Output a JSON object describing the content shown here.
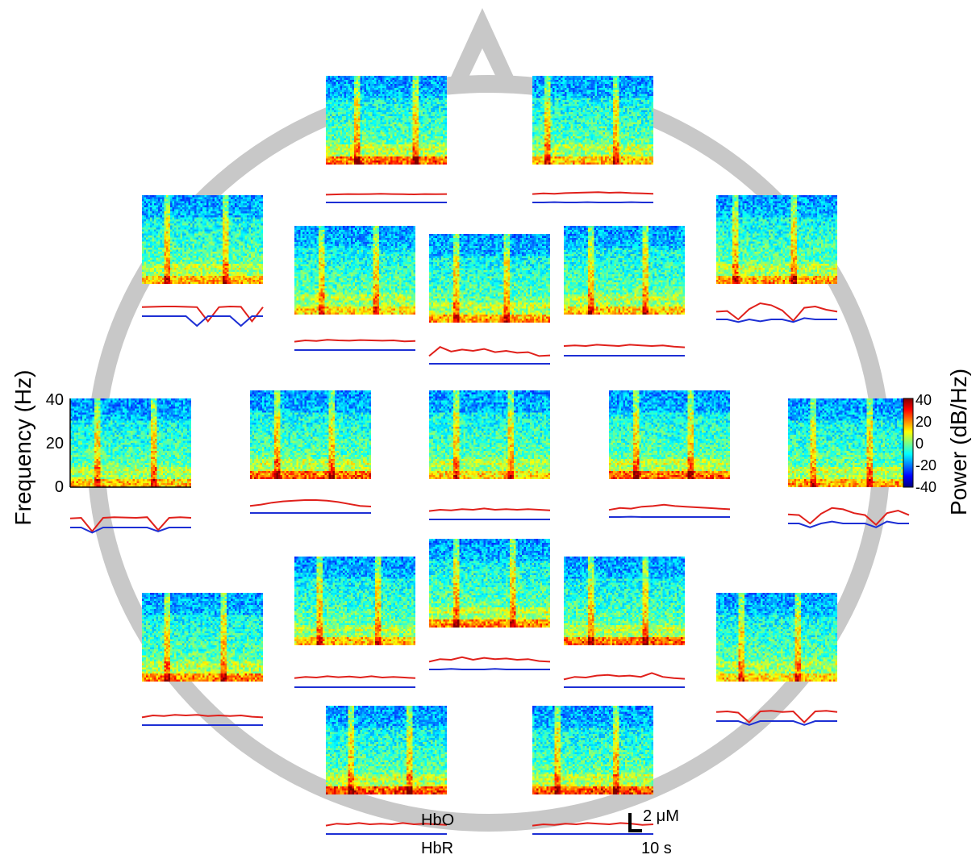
{
  "chart_data": {
    "type": "heatmap",
    "title": "",
    "ylabel": "Frequency (Hz)",
    "yticks": [
      "40",
      "20",
      "0"
    ],
    "ylim": [
      0,
      40
    ],
    "colorbar": {
      "label": "Power (dB/Hz)",
      "ticks": [
        "40",
        "20",
        "0",
        "-20",
        "-40"
      ],
      "range": [
        -40,
        40
      ],
      "colormap": "jet"
    },
    "legend": {
      "hbo": "HbO",
      "hbr": "HbR"
    },
    "scale_bar": {
      "amplitude": "2 μM",
      "time": "10 s"
    },
    "series_colors": {
      "hbo": "#e0201b",
      "hbr": "#1d2fd4"
    },
    "head_color": "#c8c8c8",
    "channels": [
      {
        "id": "ch1",
        "stim_lines": [
          0.26,
          0.74
        ],
        "low_freq_power": 0.9,
        "hbo": [
          0.2,
          0.25,
          0.3,
          0.28,
          0.3,
          0.35,
          0.3,
          0.28,
          0.25,
          0.3,
          0.28,
          0.3
        ],
        "hbr": [
          0,
          0,
          0,
          0,
          0,
          0,
          0,
          0,
          0,
          0,
          0,
          0
        ]
      },
      {
        "id": "ch2",
        "stim_lines": [
          0.12,
          0.7
        ],
        "low_freq_power": 0.6,
        "hbo": [
          0.3,
          0.4,
          0.35,
          0.45,
          0.5,
          0.55,
          0.6,
          0.5,
          0.55,
          0.45,
          0.4,
          0.35
        ],
        "hbr": [
          0,
          0,
          0.05,
          0,
          0,
          0.05,
          0,
          0,
          0,
          0.05,
          0,
          0
        ]
      },
      {
        "id": "ch3",
        "stim_lines": [
          0.2,
          0.7
        ],
        "low_freq_power": 0.6,
        "hbo": [
          0.4,
          0.45,
          0.5,
          0.5,
          0.45,
          0.4,
          -1.8,
          0.4,
          0.5,
          0.45,
          -1.8,
          0.4
        ],
        "hbr": [
          0,
          0,
          0,
          0,
          0,
          -1.5,
          0,
          0,
          0,
          -1.5,
          0,
          0
        ]
      },
      {
        "id": "ch4",
        "stim_lines": [
          0.22,
          0.68
        ],
        "low_freq_power": 0.5,
        "hbo": [
          0.3,
          0.5,
          0.4,
          0.6,
          0.5,
          0.45,
          0.55,
          0.5,
          0.45,
          0.5,
          0.35,
          0.4
        ],
        "hbr": [
          0,
          0,
          0,
          0,
          0,
          0,
          0,
          0,
          0,
          0,
          0,
          0
        ]
      },
      {
        "id": "ch5",
        "stim_lines": [
          0.22,
          0.65
        ],
        "low_freq_power": 0.7,
        "hbo": [
          0.2,
          1.6,
          0.9,
          1.2,
          1.0,
          1.3,
          0.8,
          1.0,
          0.7,
          0.8,
          0.2,
          0.3
        ],
        "hbr": [
          0,
          0,
          0,
          0,
          0,
          0,
          0,
          0,
          0,
          0,
          0,
          0
        ]
      },
      {
        "id": "ch6",
        "stim_lines": [
          0.22,
          0.68
        ],
        "low_freq_power": 0.6,
        "hbo": [
          0.5,
          0.6,
          0.5,
          0.7,
          0.6,
          0.5,
          0.7,
          0.6,
          0.5,
          0.6,
          0.4,
          0.3
        ],
        "hbr": [
          0,
          0,
          0,
          0,
          0,
          0,
          0,
          0,
          0,
          0,
          0,
          0
        ]
      },
      {
        "id": "ch7",
        "stim_lines": [
          0.15,
          0.65
        ],
        "low_freq_power": 0.7,
        "hbo": [
          0.2,
          0.3,
          -1.0,
          0.6,
          1.5,
          1.2,
          0.4,
          -1.2,
          0.8,
          1.0,
          0.5,
          0.2
        ],
        "hbr": [
          0,
          0,
          -0.4,
          0,
          -0.3,
          0,
          0,
          -0.4,
          0.2,
          0,
          0,
          0
        ]
      },
      {
        "id": "ch8",
        "stim_lines": [
          0.22,
          0.7
        ],
        "low_freq_power": 0.6,
        "hbo": [
          0.4,
          0.5,
          -1.6,
          0.5,
          0.6,
          0.55,
          0.5,
          0.6,
          -1.4,
          0.5,
          0.6,
          0.5
        ],
        "hbr": [
          0,
          0,
          -0.8,
          0,
          0,
          0,
          0,
          0,
          -0.6,
          0,
          0,
          0
        ]
      },
      {
        "id": "ch9",
        "stim_lines": [
          0.22,
          0.68
        ],
        "low_freq_power": 0.9,
        "hbo": [
          0.1,
          0.3,
          0.6,
          0.8,
          0.9,
          1.0,
          1.0,
          0.9,
          0.7,
          0.4,
          0.1,
          0.0
        ],
        "hbr": [
          0,
          0,
          0,
          0,
          0,
          0,
          0,
          0,
          0,
          0,
          0,
          0
        ]
      },
      {
        "id": "ch10",
        "stim_lines": [
          0.22,
          0.68
        ],
        "low_freq_power": 0.5,
        "hbo": [
          0.3,
          0.5,
          0.4,
          0.6,
          0.5,
          0.7,
          0.5,
          0.6,
          0.5,
          0.6,
          0.5,
          0.4
        ],
        "hbr": [
          0,
          0,
          0,
          0,
          0,
          0,
          0,
          0,
          0,
          0,
          0,
          0
        ]
      },
      {
        "id": "ch11",
        "stim_lines": [
          0.22,
          0.68
        ],
        "low_freq_power": 0.9,
        "hbo": [
          0.1,
          0.4,
          0.3,
          0.6,
          0.7,
          0.9,
          0.7,
          0.6,
          0.5,
          0.4,
          0.3,
          0.2
        ],
        "hbr": [
          0,
          0,
          0.05,
          0,
          0,
          0,
          0,
          0,
          0,
          0,
          0,
          0
        ]
      },
      {
        "id": "ch12",
        "stim_lines": [
          0.2,
          0.68
        ],
        "low_freq_power": 0.7,
        "hbo": [
          0.4,
          0.3,
          -1.0,
          0.5,
          1.4,
          1.2,
          0.6,
          0.3,
          -1.2,
          0.6,
          1.0,
          0.3
        ],
        "hbr": [
          0,
          0,
          -0.6,
          0,
          0.3,
          0,
          0,
          0,
          -0.6,
          0.3,
          0,
          0
        ]
      },
      {
        "id": "ch13",
        "stim_lines": [
          0.2,
          0.7
        ],
        "low_freq_power": 0.6,
        "hbo": [
          0.4,
          0.6,
          0.5,
          0.7,
          0.55,
          0.65,
          0.5,
          0.7,
          0.5,
          0.6,
          0.5,
          0.4
        ],
        "hbr": [
          0,
          0,
          0,
          0,
          0,
          0,
          0,
          0,
          0,
          0,
          0,
          0
        ]
      },
      {
        "id": "ch14",
        "stim_lines": [
          0.22,
          0.7
        ],
        "low_freq_power": 0.8,
        "hbo": [
          0.2,
          0.6,
          0.5,
          0.9,
          0.5,
          0.8,
          0.6,
          0.7,
          0.5,
          0.6,
          0.3,
          0.2
        ],
        "hbr": [
          0,
          0,
          0.1,
          0,
          0,
          0,
          0.1,
          0,
          0,
          0,
          0,
          0
        ]
      },
      {
        "id": "ch15",
        "stim_lines": [
          0.22,
          0.68
        ],
        "low_freq_power": 0.9,
        "hbo": [
          0.2,
          0.6,
          0.5,
          0.8,
          0.9,
          0.7,
          0.8,
          0.6,
          1.2,
          0.6,
          0.4,
          0.3
        ],
        "hbr": [
          0,
          0,
          0,
          0,
          0,
          0,
          0,
          0,
          0,
          0,
          0,
          0
        ]
      },
      {
        "id": "ch16",
        "stim_lines": [
          0.2,
          0.68
        ],
        "low_freq_power": 0.8,
        "hbo": [
          0.2,
          0.5,
          0.4,
          0.6,
          0.5,
          0.6,
          0.4,
          0.5,
          0.4,
          0.5,
          0.3,
          0.2
        ],
        "hbr": [
          0,
          0,
          0,
          0,
          0,
          0,
          0,
          0,
          0,
          0,
          0,
          0
        ]
      },
      {
        "id": "ch17",
        "stim_lines": [
          0.2,
          0.68
        ],
        "low_freq_power": 0.5,
        "hbo": [
          0.4,
          0.5,
          0.3,
          -1.2,
          0.5,
          0.6,
          0.4,
          0.5,
          -1.2,
          0.5,
          0.6,
          0.4
        ],
        "hbr": [
          0,
          0,
          0,
          -0.6,
          0,
          0,
          0,
          0,
          -0.6,
          0,
          0,
          0
        ]
      },
      {
        "id": "ch18",
        "stim_lines": [
          0.2,
          0.7
        ],
        "low_freq_power": 1.0,
        "hbo": [
          0.3,
          0.6,
          0.5,
          0.7,
          0.5,
          0.6,
          0.5,
          0.7,
          0.5,
          0.6,
          0.5,
          0.4
        ],
        "hbr": [
          0,
          0,
          0,
          0,
          0,
          0,
          0,
          0,
          0,
          0,
          0,
          0
        ]
      },
      {
        "id": "ch19",
        "stim_lines": [
          0.2,
          0.7
        ],
        "low_freq_power": 1.0,
        "hbo": [
          0.3,
          0.5,
          0.4,
          0.6,
          0.5,
          0.7,
          0.6,
          0.5,
          0.7,
          0.6,
          0.4,
          0.5
        ],
        "hbr": [
          0,
          0,
          0,
          0,
          0,
          0,
          0,
          0,
          0,
          0,
          0,
          0
        ]
      }
    ]
  }
}
